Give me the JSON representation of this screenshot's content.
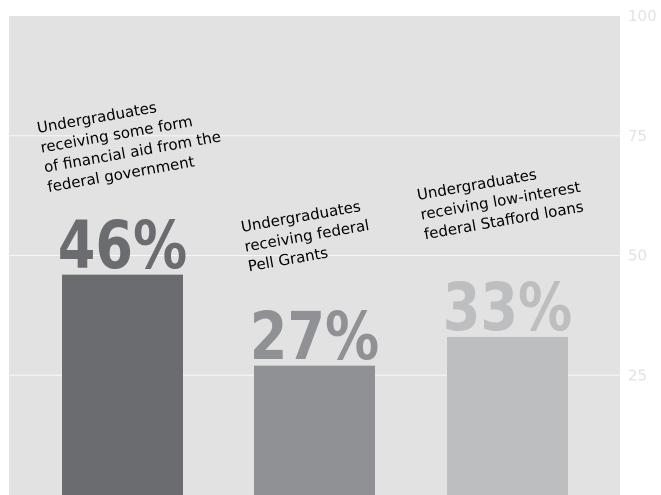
{
  "chart_data": {
    "type": "bar",
    "categories": [
      "Undergraduates receiving some form of financial aid from the federal government",
      "Undergraduates receiving federal Pell Grants",
      "Undergraduates receiving low-interest federal Stafford loans"
    ],
    "category_lines": [
      [
        "Undergraduates",
        "receiving some form",
        "of financial aid from the",
        "federal government"
      ],
      [
        "Undergraduates",
        "receiving federal",
        "Pell Grants"
      ],
      [
        "Undergraduates",
        "receiving low-interest",
        "federal Stafford loans"
      ]
    ],
    "values": [
      46,
      27,
      33
    ],
    "value_labels": [
      "46%",
      "27%",
      "33%"
    ],
    "bar_colors": [
      "#6b6c6f",
      "#909194",
      "#bdbec0"
    ],
    "yticks": [
      25,
      50,
      75,
      100
    ],
    "ytick_labels": [
      "25",
      "50",
      "75",
      "100"
    ],
    "ylim": [
      0,
      100
    ],
    "grid": true,
    "background_color": "#e2e2e2",
    "title": "",
    "xlabel": "",
    "ylabel": ""
  }
}
